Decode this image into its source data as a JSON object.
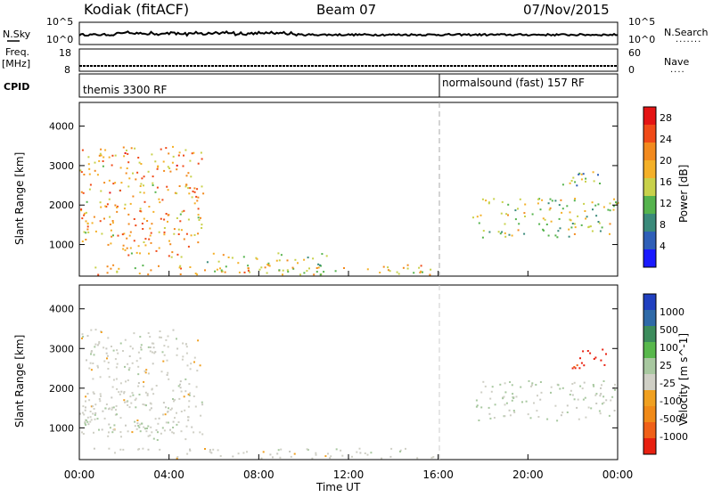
{
  "header": {
    "station": "Kodiak (fitACF)",
    "beam": "Beam 07",
    "date": "07/Nov/2015"
  },
  "panels": {
    "nsky": {
      "label": "N.Sky",
      "ticks": [
        "10^5",
        "10^0"
      ],
      "right_label": "N.Search",
      "right_ticks": [
        "10^5",
        "10^0"
      ]
    },
    "freq": {
      "label_line1": "Freq.",
      "label_line2": "[MHz]",
      "ticks": [
        "18",
        "8"
      ],
      "right_label": "Nave",
      "right_ticks": [
        "60",
        "0"
      ]
    },
    "cpid": {
      "label": "CPID",
      "modes": [
        "themis 3300 RF",
        "normalsound (fast) 157 RF"
      ]
    }
  },
  "colors": {
    "power": [
      "#1a1aff",
      "#2f5fb8",
      "#3a8a7a",
      "#55b34d",
      "#c8d14a",
      "#f4b028",
      "#f28a1e",
      "#f04a18",
      "#e41414"
    ],
    "velocity": [
      "#2040c0",
      "#2f6aa8",
      "#3c8c5c",
      "#58b84c",
      "#a8c8a0",
      "#cfcfc5",
      "#f0a020",
      "#f08a18",
      "#f06018",
      "#e82010"
    ],
    "ground_scatter": "#c8c8c0"
  },
  "chart_data": [
    {
      "type": "heatmap",
      "title": "Power",
      "xlabel": "Time UT",
      "ylabel": "Slant Range [km]",
      "x_ticks": [
        "00:00",
        "04:00",
        "08:00",
        "12:00",
        "16:00",
        "20:00",
        "00:00"
      ],
      "y_ticks": [
        1000,
        2000,
        3000,
        4000
      ],
      "ylim": [
        200,
        4600
      ],
      "xlim_hours": [
        0,
        24
      ],
      "colorbar": {
        "label": "Power [dB]",
        "ticks": [
          4,
          8,
          12,
          16,
          20,
          24,
          28
        ],
        "range": [
          0,
          30
        ]
      },
      "mode_change_hour": 16,
      "echo_regions": [
        {
          "name": "early-bands",
          "t": [
            0.0,
            5.5
          ],
          "r": [
            700,
            3500
          ],
          "power": 20
        },
        {
          "name": "near-range-layer",
          "t": [
            0.5,
            16.0
          ],
          "r": [
            250,
            500
          ],
          "power": 18
        },
        {
          "name": "morning-patches",
          "t": [
            5.5,
            11.0
          ],
          "r": [
            300,
            800
          ],
          "power": 16
        },
        {
          "name": "evening-band",
          "t": [
            17.5,
            24.0
          ],
          "r": [
            1200,
            2200
          ],
          "power": 14
        },
        {
          "name": "evening-upper",
          "t": [
            21.5,
            23.5
          ],
          "r": [
            2500,
            3000
          ],
          "power": 12
        }
      ]
    },
    {
      "type": "heatmap",
      "title": "Velocity",
      "xlabel": "Time UT",
      "ylabel": "Slant Range [km]",
      "x_ticks": [
        "00:00",
        "04:00",
        "08:00",
        "12:00",
        "16:00",
        "20:00",
        "00:00"
      ],
      "y_ticks": [
        1000,
        2000,
        3000,
        4000
      ],
      "ylim": [
        200,
        4600
      ],
      "xlim_hours": [
        0,
        24
      ],
      "colorbar": {
        "label": "Velocity [m s^-1]",
        "ticks": [
          1000,
          500,
          100,
          25,
          -25,
          -100,
          -500,
          -1000
        ]
      },
      "echo_regions": [
        {
          "name": "early-bands",
          "t": [
            0.0,
            5.5
          ],
          "r": [
            700,
            3500
          ],
          "velocity": -100
        },
        {
          "name": "near-range-layer",
          "t": [
            0.5,
            16.0
          ],
          "r": [
            250,
            500
          ],
          "velocity": -100
        },
        {
          "name": "ground-scatter-early",
          "t": [
            0.0,
            4.5
          ],
          "r": [
            900,
            1700
          ],
          "velocity": 0
        },
        {
          "name": "evening-band",
          "t": [
            17.5,
            24.0
          ],
          "r": [
            1200,
            2200
          ],
          "velocity": 0
        },
        {
          "name": "evening-upper",
          "t": [
            21.5,
            23.5
          ],
          "r": [
            2500,
            3000
          ],
          "velocity": -1000
        }
      ]
    }
  ]
}
